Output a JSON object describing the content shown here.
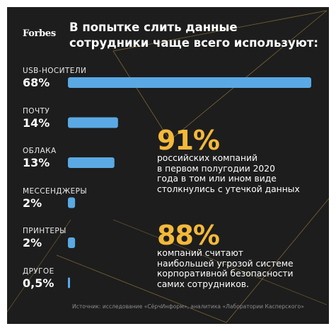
{
  "logo": "Forbes",
  "title_line1": "В попытке слить данные",
  "title_line2": "сотрудники чаще всего используют:",
  "chart_data": {
    "type": "bar",
    "orientation": "horizontal",
    "categories": [
      "USB-НОСИТЕЛИ",
      "ПОЧТУ",
      "ОБЛАКА",
      "МЕССЕНДЖЕРЫ",
      "ПРИНТЕРЫ",
      "ДРУГОЕ"
    ],
    "value_labels": [
      "68%",
      "14%",
      "13%",
      "2%",
      "2%",
      "0,5%"
    ],
    "values": [
      68,
      14,
      13,
      2,
      2,
      0.5
    ],
    "xlim": [
      0,
      68
    ],
    "bar_color": "#5aa9e4",
    "grid": false
  },
  "stats": [
    {
      "value": "91%",
      "lines": [
        "российских компаний",
        "в первом полугодии 2020",
        "года в том или ином виде",
        "столкнулись с утечкой данных"
      ]
    },
    {
      "value": "88%",
      "lines": [
        "компаний считают",
        "наибольшей угрозой системе",
        "корпоративной безопасности",
        "самих сотрудников."
      ]
    }
  ],
  "source": "Источник: исследование «СёрчИнформ», аналитика «Лаборатории Касперского»",
  "colors": {
    "background": "#1d1d1d",
    "accent": "#f3b93a",
    "bar": "#5aa9e4",
    "text": "#ffffff",
    "muted": "#8c8c8c"
  }
}
